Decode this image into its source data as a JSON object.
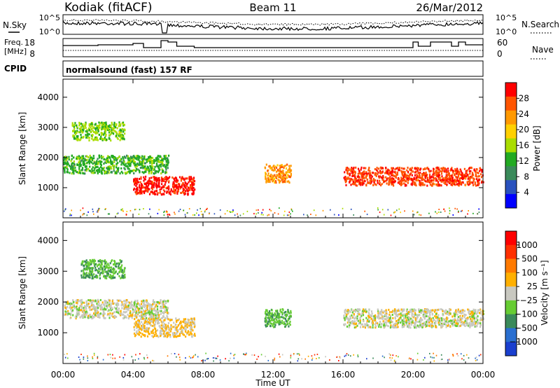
{
  "header": {
    "station": "Kodiak (fitACF)",
    "beam": "Beam 11",
    "date": "26/Mar/2012"
  },
  "noise_panel": {
    "left_label": "N.Sky",
    "right_label": "N.Search",
    "left_ticks": [
      "10^5",
      "10^0"
    ],
    "right_ticks": [
      "10^5",
      "10^0"
    ]
  },
  "freq_panel": {
    "left_label_line1": "Freq.",
    "left_label_line2": "[MHz]",
    "left_ticks": [
      "18",
      "8"
    ],
    "right_label": "Nave",
    "right_ticks": [
      "60",
      "0"
    ]
  },
  "cpid_panel": {
    "label": "CPID",
    "text": "normalsound (fast) 157 RF"
  },
  "power_panel": {
    "ylabel": "Slant Range [km]",
    "yticks": [
      "4000",
      "3000",
      "2000",
      "1000"
    ],
    "colorbar_label": "Power [dB]",
    "colorbar_ticks": [
      "28",
      "24",
      "20",
      "16",
      "12",
      "8",
      "4"
    ],
    "colors": [
      "#0000ff",
      "#2a52be",
      "#3a8a5a",
      "#22aa22",
      "#aadd00",
      "#ffd000",
      "#ff9900",
      "#ff5500",
      "#ff0000"
    ]
  },
  "velocity_panel": {
    "ylabel": "Slant Range [km]",
    "yticks": [
      "4000",
      "3000",
      "2000",
      "1000"
    ],
    "colorbar_label": "Velocity [m s⁻¹]",
    "colorbar_ticks": [
      "1000",
      "500",
      "100",
      "25",
      "−25",
      "−100",
      "−500",
      "−1000"
    ],
    "colors": [
      "#1a3fcf",
      "#2a6fd0",
      "#3a8a5a",
      "#66cc33",
      "#c8c8c0",
      "#ffb000",
      "#ff7a00",
      "#ff3000",
      "#ff0000"
    ]
  },
  "xaxis": {
    "label": "Time UT",
    "ticks": [
      "00:00",
      "04:00",
      "08:00",
      "12:00",
      "16:00",
      "20:00",
      "00:00"
    ]
  },
  "chart_data": [
    {
      "type": "heatmap",
      "title": "",
      "xlabel": "Time UT",
      "ylabel": "Slant Range [km]",
      "quantity": "Power [dB]",
      "xlim": [
        0,
        24
      ],
      "ylim": [
        0,
        4600
      ],
      "colorbar_range": [
        0,
        30
      ],
      "features": [
        {
          "t_start": 0.0,
          "t_end": 6.0,
          "range_km": 1800,
          "power_db": 12
        },
        {
          "t_start": 4.0,
          "t_end": 7.5,
          "range_km": 1100,
          "power_db": 28
        },
        {
          "t_start": 11.5,
          "t_end": 13.0,
          "range_km": 1500,
          "power_db": 22
        },
        {
          "t_start": 16.0,
          "t_end": 24.0,
          "range_km": 1400,
          "power_db": 26
        },
        {
          "t_start": 0.5,
          "t_end": 3.5,
          "range_km": 2900,
          "power_db": 14
        }
      ]
    },
    {
      "type": "heatmap",
      "title": "",
      "xlabel": "Time UT",
      "ylabel": "Slant Range [km]",
      "quantity": "Velocity [m s-1]",
      "xlim": [
        0,
        24
      ],
      "ylim": [
        0,
        4600
      ],
      "colorbar_range": [
        -1000,
        1000
      ],
      "features": [
        {
          "t_start": 0.0,
          "t_end": 6.0,
          "range_km": 1800,
          "velocity": 0
        },
        {
          "t_start": 1.0,
          "t_end": 3.5,
          "range_km": 3100,
          "velocity": -300
        },
        {
          "t_start": 4.0,
          "t_end": 7.5,
          "range_km": 1200,
          "velocity": 150
        },
        {
          "t_start": 11.5,
          "t_end": 13.0,
          "range_km": 1500,
          "velocity": -300
        },
        {
          "t_start": 16.0,
          "t_end": 24.0,
          "range_km": 1500,
          "velocity": 0
        }
      ]
    }
  ]
}
